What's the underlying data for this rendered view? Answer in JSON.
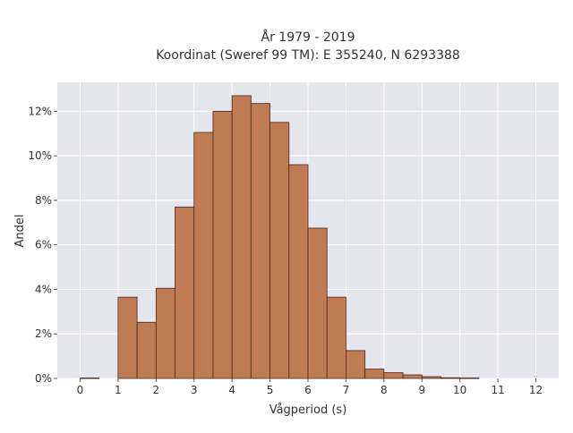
{
  "chart_data": {
    "type": "bar",
    "title_line1": "År 1979 - 2019",
    "title_line2": "Koordinat (Sweref 99 TM): E 355240, N 6293388",
    "xlabel": "Vågperiod (s)",
    "ylabel": "Andel",
    "xlim": [
      -0.6,
      12.6
    ],
    "ylim": [
      0,
      13.3
    ],
    "x_ticks": [
      0,
      1,
      2,
      3,
      4,
      5,
      6,
      7,
      8,
      9,
      10,
      11,
      12
    ],
    "x_tick_labels": [
      "0",
      "1",
      "2",
      "3",
      "4",
      "5",
      "6",
      "7",
      "8",
      "9",
      "10",
      "11",
      "12"
    ],
    "y_ticks": [
      0,
      2,
      4,
      6,
      8,
      10,
      12
    ],
    "y_tick_labels": [
      "0%",
      "2%",
      "4%",
      "6%",
      "8%",
      "10%",
      "12%"
    ],
    "bin_width": 0.5,
    "bins": [
      {
        "start": 0.0,
        "value": 0.02
      },
      {
        "start": 1.0,
        "value": 3.65
      },
      {
        "start": 1.5,
        "value": 2.52
      },
      {
        "start": 2.0,
        "value": 4.05
      },
      {
        "start": 2.5,
        "value": 7.7
      },
      {
        "start": 3.0,
        "value": 11.05
      },
      {
        "start": 3.5,
        "value": 12.0
      },
      {
        "start": 4.0,
        "value": 12.7
      },
      {
        "start": 4.5,
        "value": 12.35
      },
      {
        "start": 5.0,
        "value": 11.5
      },
      {
        "start": 5.5,
        "value": 9.6
      },
      {
        "start": 6.0,
        "value": 6.75
      },
      {
        "start": 6.5,
        "value": 3.65
      },
      {
        "start": 7.0,
        "value": 1.25
      },
      {
        "start": 7.5,
        "value": 0.42
      },
      {
        "start": 8.0,
        "value": 0.26
      },
      {
        "start": 8.5,
        "value": 0.16
      },
      {
        "start": 9.0,
        "value": 0.08
      },
      {
        "start": 9.5,
        "value": 0.03
      },
      {
        "start": 10.0,
        "value": 0.02
      }
    ],
    "grid": true,
    "colors": {
      "bar_fill": "#c07a54",
      "bar_stroke": "#4a2a1a",
      "plot_background": "#e5e5ee",
      "grid": "#ffffff",
      "text": "#333333"
    }
  }
}
